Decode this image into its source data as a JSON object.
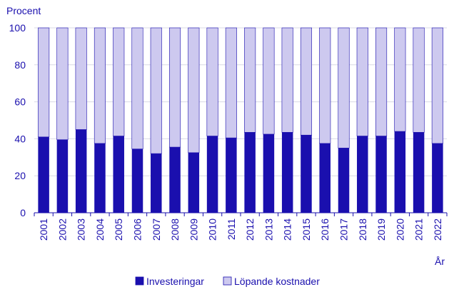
{
  "chart_data": {
    "type": "bar",
    "stacked": true,
    "ylabel": "Procent",
    "xlabel": "År",
    "ylim": [
      0,
      100
    ],
    "yticks": [
      "0",
      "20",
      "40",
      "60",
      "80",
      "100"
    ],
    "grid": true,
    "legend_position": "bottom",
    "categories": [
      "2001",
      "2002",
      "2003",
      "2004",
      "2005",
      "2006",
      "2007",
      "2008",
      "2009",
      "2010",
      "2011",
      "2012",
      "2013",
      "2014",
      "2015",
      "2016",
      "2017",
      "2018",
      "2019",
      "2020",
      "2021",
      "2022"
    ],
    "series": [
      {
        "name": "Investeringar",
        "color": "#1a0fae",
        "values": [
          41,
          39.5,
          45,
          37.5,
          41.5,
          34.5,
          32,
          35.5,
          32.5,
          41.5,
          40.5,
          43.5,
          42.5,
          43.5,
          42,
          37.5,
          35,
          41.5,
          41.5,
          44,
          43.5,
          37.5
        ]
      },
      {
        "name": "Löpande kostnader",
        "color": "#cdc9ef",
        "values": [
          59,
          60.5,
          55,
          62.5,
          58.5,
          65.5,
          68,
          64.5,
          67.5,
          58.5,
          59.5,
          56.5,
          57.5,
          56.5,
          58,
          62.5,
          65,
          58.5,
          58.5,
          56,
          56.5,
          62.5
        ]
      }
    ]
  }
}
